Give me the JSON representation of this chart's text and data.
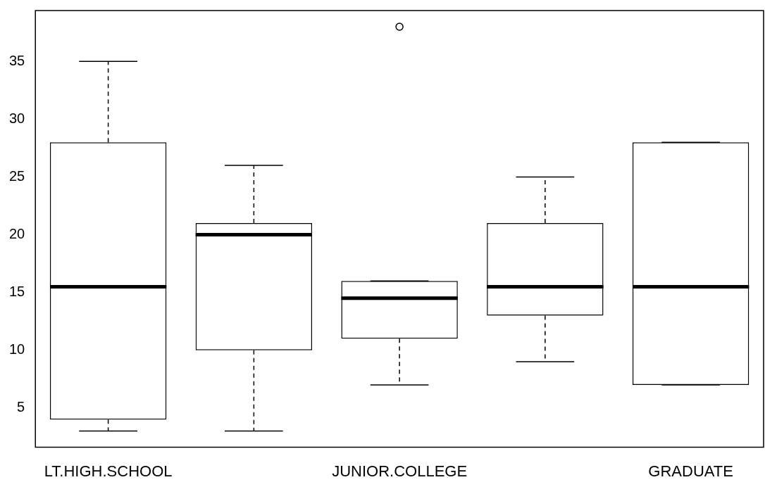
{
  "chart_data": {
    "type": "box",
    "categories": [
      "LT.HIGH.SCHOOL",
      null,
      "JUNIOR.COLLEGE",
      null,
      "GRADUATE"
    ],
    "boxes": [
      {
        "low": 3,
        "q1": 4,
        "median": 15.5,
        "q3": 28,
        "high": 35
      },
      {
        "low": 3,
        "q1": 10,
        "median": 20,
        "q3": 21,
        "high": 26
      },
      {
        "low": 7,
        "q1": 11,
        "median": 14.5,
        "q3": 16,
        "high": 16,
        "outliers": [
          38
        ]
      },
      {
        "low": 9,
        "q1": 13,
        "median": 15.5,
        "q3": 21,
        "high": 25
      },
      {
        "low": 7,
        "q1": 7,
        "median": 15.5,
        "q3": 28,
        "high": 28
      }
    ],
    "ylim": [
      1.6,
      39.4
    ],
    "yticks": [
      5,
      10,
      15,
      20,
      25,
      30,
      35
    ]
  }
}
